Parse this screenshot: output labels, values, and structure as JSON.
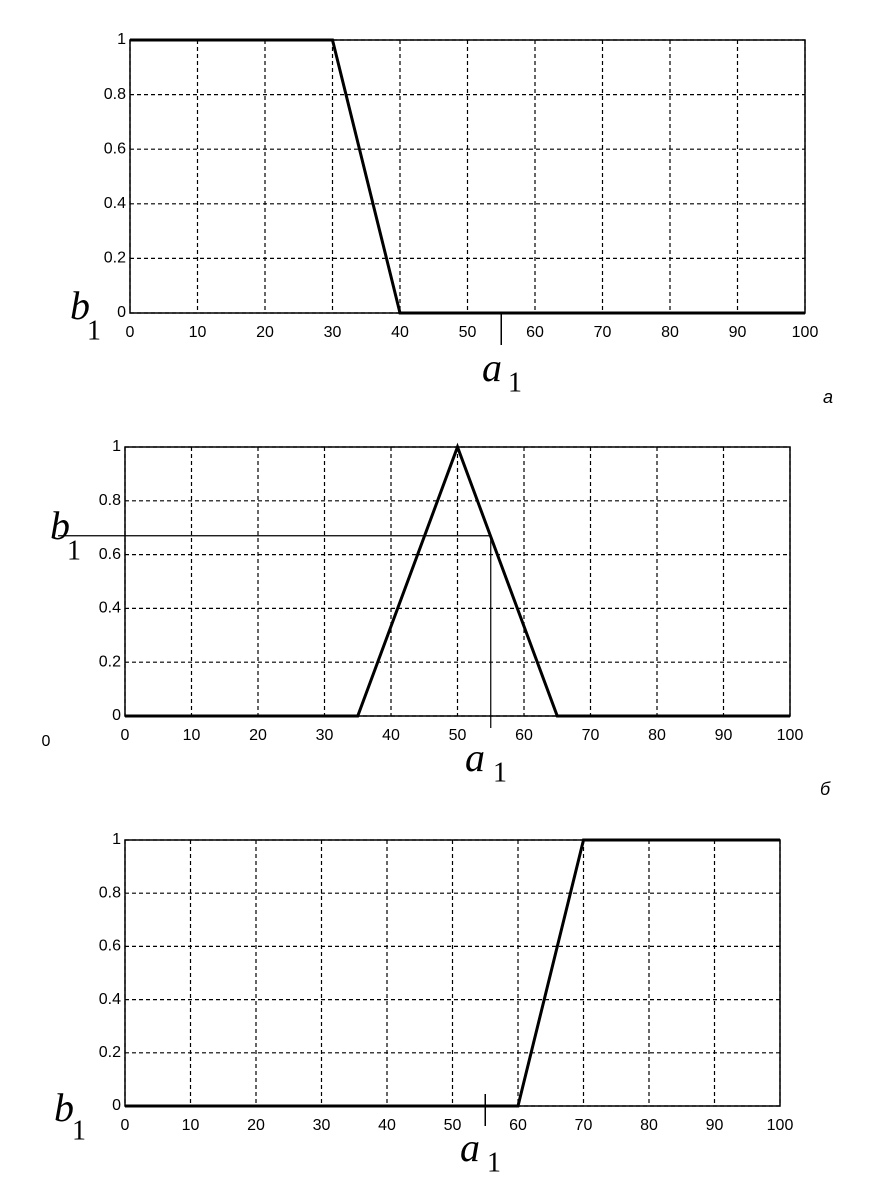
{
  "chart_data": [
    {
      "type": "line",
      "panel": "а",
      "ylabel": "b",
      "ylabel_subscript": "1",
      "xlabel": "a",
      "xlabel_subscript": "1",
      "x": [
        0,
        30,
        40,
        100
      ],
      "series": [
        {
          "color": "#000000",
          "values": [
            1,
            1,
            0,
            0
          ]
        }
      ],
      "xlim": [
        0,
        100
      ],
      "ylim": [
        0,
        1
      ],
      "xticks": [
        0,
        10,
        20,
        30,
        40,
        50,
        60,
        70,
        80,
        90,
        100
      ],
      "yticks": [
        0,
        0.2,
        0.4,
        0.6,
        0.8,
        1
      ],
      "grid": true,
      "marker_x": 55
    },
    {
      "type": "line",
      "panel": "б",
      "ylabel": "b",
      "ylabel_subscript": "1",
      "xlabel": "a",
      "xlabel_subscript": "1",
      "x": [
        0,
        35,
        50,
        65,
        100
      ],
      "series": [
        {
          "color": "#000000",
          "values": [
            0,
            0,
            1,
            0,
            0
          ]
        }
      ],
      "xlim": [
        0,
        100
      ],
      "ylim": [
        0,
        1
      ],
      "xticks": [
        0,
        10,
        20,
        30,
        40,
        50,
        60,
        70,
        80,
        90,
        100
      ],
      "yticks": [
        0,
        0.2,
        0.4,
        0.6,
        0.8,
        1
      ],
      "grid": true,
      "marker_x": 55,
      "marker_y": 0.67,
      "annotation": "0"
    },
    {
      "type": "line",
      "ylabel": "b",
      "ylabel_subscript": "1",
      "xlabel": "a",
      "xlabel_subscript": "1",
      "x": [
        0,
        60,
        70,
        100
      ],
      "series": [
        {
          "color": "#000000",
          "values": [
            0,
            0,
            1,
            1
          ]
        }
      ],
      "xlim": [
        0,
        100
      ],
      "ylim": [
        0,
        1
      ],
      "xticks": [
        0,
        10,
        20,
        30,
        40,
        50,
        60,
        70,
        80,
        90,
        100
      ],
      "yticks": [
        0,
        0.2,
        0.4,
        0.6,
        0.8,
        1
      ],
      "grid": true,
      "marker_x": 55
    }
  ]
}
